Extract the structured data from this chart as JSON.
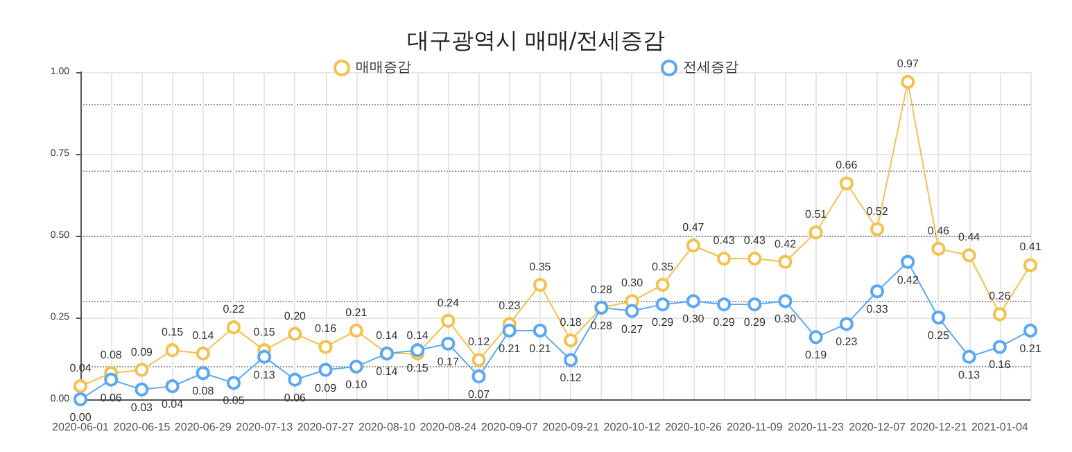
{
  "chart_data": {
    "type": "line",
    "title": "대구광역시 매매/전세증감",
    "categories": [
      "2020-06-01",
      null,
      "2020-06-15",
      null,
      "2020-06-29",
      null,
      "2020-07-13",
      null,
      "2020-07-27",
      null,
      "2020-08-10",
      null,
      "2020-08-24",
      null,
      "2020-09-07",
      null,
      "2020-09-21",
      null,
      "2020-10-12",
      null,
      "2020-10-26",
      null,
      "2020-11-09",
      null,
      "2020-11-23",
      null,
      "2020-12-07",
      null,
      "2020-12-21",
      null,
      "2021-01-04",
      null
    ],
    "series": [
      {
        "name": "매매증감",
        "color": "#f5c14e",
        "values": [
          0.04,
          0.08,
          0.09,
          0.15,
          0.14,
          0.22,
          0.15,
          0.2,
          0.16,
          0.21,
          0.14,
          0.14,
          0.24,
          0.12,
          0.23,
          0.35,
          0.18,
          0.28,
          0.3,
          0.35,
          0.47,
          0.43,
          0.43,
          0.42,
          0.51,
          0.66,
          0.52,
          0.97,
          0.46,
          0.44,
          0.26,
          0.41
        ],
        "value_labels": [
          "0.04",
          "0.08",
          "0.09",
          "0.15",
          "0.14",
          "0.22",
          "0.15",
          "0.20",
          "0.16",
          "0.21",
          "0.14",
          "0.14",
          "0.24",
          "0.12",
          "0.23",
          "0.35",
          "0.18",
          "0.28",
          "0.30",
          "0.35",
          "0.47",
          "0.43",
          "0.43",
          "0.42",
          "0.51",
          "0.66",
          "0.52",
          "0.97",
          "0.46",
          "0.44",
          "0.26",
          "0.41"
        ]
      },
      {
        "name": "전세증감",
        "color": "#5aa8f4",
        "values": [
          0.0,
          0.06,
          0.03,
          0.04,
          0.08,
          0.05,
          0.13,
          0.06,
          0.09,
          0.1,
          0.14,
          0.15,
          0.17,
          0.07,
          0.21,
          0.21,
          0.12,
          0.28,
          0.27,
          0.29,
          0.3,
          0.29,
          0.29,
          0.3,
          0.19,
          0.23,
          0.33,
          0.42,
          0.25,
          0.13,
          0.16,
          0.21
        ],
        "value_labels": [
          "0.00",
          "0.06",
          "0.03",
          "0.04",
          "0.08",
          "0.05",
          "0.13",
          "0.06",
          "0.09",
          "0.10",
          "0.14",
          "0.15",
          "0.17",
          "0.07",
          "0.21",
          "0.21",
          "0.12",
          "0.28",
          "0.27",
          "0.29",
          "0.30",
          "0.29",
          "0.29",
          "0.30",
          "0.19",
          "0.23",
          "0.33",
          "0.42",
          "0.25",
          "0.13",
          "0.16",
          "0.21"
        ]
      }
    ],
    "ylim": [
      0,
      1
    ],
    "yticks": [
      {
        "value": 0,
        "label": "0.00"
      },
      {
        "value": 0.25,
        "label": "0.25"
      },
      {
        "value": 0.5,
        "label": "0.50"
      },
      {
        "value": 0.75,
        "label": "0.75"
      },
      {
        "value": 1,
        "label": "1.00"
      }
    ],
    "grid": true,
    "legend": "top",
    "marker": "circle",
    "line_style": "solid"
  }
}
